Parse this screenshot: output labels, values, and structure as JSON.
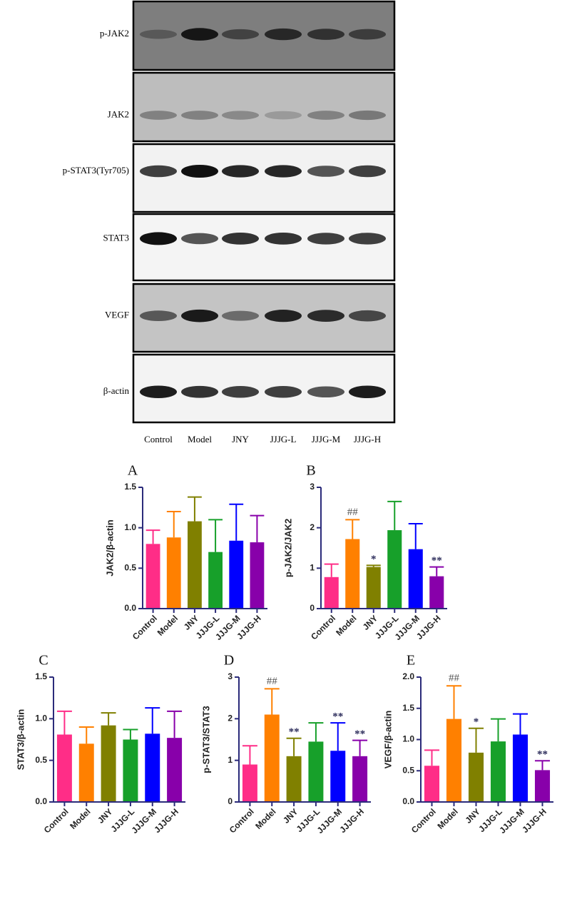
{
  "blot": {
    "rows": [
      "p-JAK2",
      "JAK2",
      "p-STAT3(Tyr705)",
      "STAT3",
      "VEGF",
      "β-actin"
    ],
    "lanes": [
      "Control",
      "Model",
      "JNY",
      "JJJG-L",
      "JJJG-M",
      "JJJG-H"
    ]
  },
  "chart_data": [
    {
      "type": "bar",
      "panel": "A",
      "ylabel": "JAK2/β-actin",
      "categories": [
        "Control",
        "Model",
        "JNY",
        "JJJG-L",
        "JJJG-M",
        "JJJG-H"
      ],
      "values": [
        0.8,
        0.88,
        1.08,
        0.7,
        0.84,
        0.82
      ],
      "errors": [
        0.17,
        0.32,
        0.3,
        0.4,
        0.45,
        0.33
      ],
      "annotations": [
        null,
        null,
        null,
        null,
        null,
        null
      ],
      "colors": [
        "#ff2d87",
        "#ff8000",
        "#808000",
        "#17a02a",
        "#0000ff",
        "#8800aa"
      ],
      "ylim": [
        0,
        1.5
      ],
      "yticks": [
        {
          "value": 0,
          "label": "0.0"
        },
        {
          "value": 0.5,
          "label": "0.5"
        },
        {
          "value": 1,
          "label": "1.0"
        },
        {
          "value": 1.5,
          "label": "1.5"
        }
      ]
    },
    {
      "type": "bar",
      "panel": "B",
      "ylabel": "p-JAK2/JAK2",
      "categories": [
        "Control",
        "Model",
        "JNY",
        "JJJG-L",
        "JJJG-M",
        "JJJG-H"
      ],
      "values": [
        0.78,
        1.72,
        1.03,
        1.94,
        1.47,
        0.8
      ],
      "errors": [
        0.32,
        0.48,
        0.04,
        0.71,
        0.63,
        0.23
      ],
      "annotations": [
        null,
        "##",
        "*",
        null,
        null,
        "**"
      ],
      "colors": [
        "#ff2d87",
        "#ff8000",
        "#808000",
        "#17a02a",
        "#0000ff",
        "#8800aa"
      ],
      "ylim": [
        0,
        3
      ],
      "yticks": [
        0,
        1,
        2,
        3
      ]
    },
    {
      "type": "bar",
      "panel": "C",
      "ylabel": "STAT3/β-actin",
      "categories": [
        "Control",
        "Model",
        "JNY",
        "JJJG-L",
        "JJJG-M",
        "JJJG-H"
      ],
      "values": [
        0.81,
        0.7,
        0.92,
        0.75,
        0.82,
        0.77
      ],
      "errors": [
        0.28,
        0.2,
        0.15,
        0.12,
        0.31,
        0.32
      ],
      "annotations": [
        null,
        null,
        null,
        null,
        null,
        null
      ],
      "colors": [
        "#ff2d87",
        "#ff8000",
        "#808000",
        "#17a02a",
        "#0000ff",
        "#8800aa"
      ],
      "ylim": [
        0,
        1.5
      ],
      "yticks": [
        {
          "value": 0,
          "label": "0.0"
        },
        {
          "value": 0.5,
          "label": "0.5"
        },
        {
          "value": 1,
          "label": "1.0"
        },
        {
          "value": 1.5,
          "label": "1.5"
        }
      ]
    },
    {
      "type": "bar",
      "panel": "D",
      "ylabel": "p-STAT3/STAT3",
      "categories": [
        "Control",
        "Model",
        "JNY",
        "JJJG-L",
        "JJJG-M",
        "JJJG-H"
      ],
      "values": [
        0.9,
        2.1,
        1.1,
        1.45,
        1.23,
        1.1
      ],
      "errors": [
        0.45,
        0.62,
        0.43,
        0.45,
        0.67,
        0.38
      ],
      "annotations": [
        null,
        "##",
        "**",
        null,
        "**",
        "**"
      ],
      "colors": [
        "#ff2d87",
        "#ff8000",
        "#808000",
        "#17a02a",
        "#0000ff",
        "#8800aa"
      ],
      "ylim": [
        0,
        3
      ],
      "yticks": [
        0,
        1,
        2,
        3
      ]
    },
    {
      "type": "bar",
      "panel": "E",
      "ylabel": "VEGF/β-actin",
      "categories": [
        "Control",
        "Model",
        "JNY",
        "JJJG-L",
        "JJJG-M",
        "JJJG-H"
      ],
      "values": [
        0.58,
        1.33,
        0.79,
        0.97,
        1.08,
        0.51
      ],
      "errors": [
        0.25,
        0.53,
        0.39,
        0.36,
        0.33,
        0.15
      ],
      "annotations": [
        null,
        "##",
        "*",
        null,
        null,
        "**"
      ],
      "colors": [
        "#ff2d87",
        "#ff8000",
        "#808000",
        "#17a02a",
        "#0000ff",
        "#8800aa"
      ],
      "ylim": [
        0,
        2
      ],
      "yticks": [
        {
          "value": 0,
          "label": "0.0"
        },
        {
          "value": 0.5,
          "label": "0.5"
        },
        {
          "value": 1,
          "label": "1.0"
        },
        {
          "value": 1.5,
          "label": "1.5"
        },
        {
          "value": 2,
          "label": "2.0"
        }
      ]
    }
  ]
}
